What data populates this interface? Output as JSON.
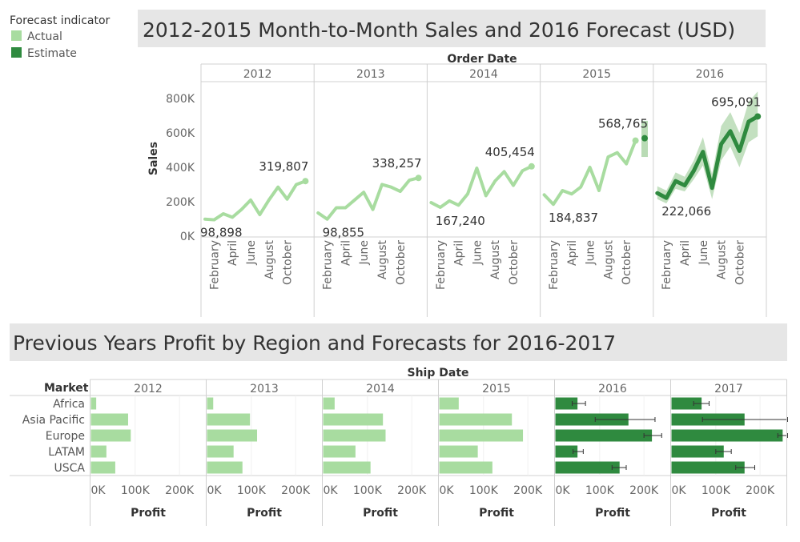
{
  "legend": {
    "title": "Forecast indicator",
    "items": [
      {
        "label": "Actual",
        "color": "#a8dca0"
      },
      {
        "label": "Estimate",
        "color": "#2f8a3f"
      }
    ]
  },
  "chart_data": [
    {
      "type": "line",
      "title": "2012-2015 Month-to-Month Sales and 2016 Forecast (USD)",
      "column_header": "Order Date",
      "ylabel": "Sales",
      "ylim": [
        0,
        860000
      ],
      "yticks": [
        0,
        200000,
        400000,
        600000,
        800000
      ],
      "ytick_labels": [
        "0K",
        "200K",
        "400K",
        "600K",
        "800K"
      ],
      "month_tick_labels": [
        "February",
        "April",
        "June",
        "August",
        "October"
      ],
      "colors": {
        "actual": "#a8dca0",
        "estimate": "#2f8a3f",
        "band": "#b9dbb5"
      },
      "years": [
        {
          "year": "2012",
          "indicator": "Actual",
          "values": [
            98898,
            95000,
            130000,
            110000,
            155000,
            210000,
            125000,
            210000,
            285000,
            215000,
            300000,
            319807
          ],
          "labels": [
            {
              "text": "98,898",
              "index": 0
            },
            {
              "text": "319,807",
              "index": 11
            }
          ]
        },
        {
          "year": "2013",
          "indicator": "Actual",
          "values": [
            135000,
            98855,
            165000,
            165000,
            210000,
            255000,
            155000,
            300000,
            285000,
            260000,
            325000,
            338257
          ],
          "labels": [
            {
              "text": "98,855",
              "index": 1
            },
            {
              "text": "338,257",
              "index": 11
            }
          ]
        },
        {
          "year": "2014",
          "indicator": "Actual",
          "values": [
            195000,
            167240,
            205000,
            180000,
            245000,
            395000,
            235000,
            320000,
            375000,
            295000,
            380000,
            405454
          ],
          "labels": [
            {
              "text": "167,240",
              "index": 1
            },
            {
              "text": "405,454",
              "index": 11
            }
          ]
        },
        {
          "year": "2015",
          "indicator": "Actual",
          "values": [
            240000,
            184837,
            265000,
            245000,
            285000,
            400000,
            265000,
            460000,
            485000,
            420000,
            555000
          ],
          "labels": [
            {
              "text": "184,837",
              "index": 1
            },
            {
              "text": "568,765",
              "index": 11
            }
          ],
          "estimate_point": {
            "index": 11,
            "value": 568765,
            "low": 460000,
            "high": 670000
          }
        },
        {
          "year": "2016",
          "indicator": "Estimate",
          "values": [
            250000,
            222066,
            320000,
            295000,
            380000,
            490000,
            280000,
            535000,
            610000,
            495000,
            665000,
            695091
          ],
          "band_low": [
            215000,
            190000,
            275000,
            260000,
            330000,
            410000,
            215000,
            440000,
            520000,
            400000,
            545000,
            580000
          ],
          "band_high": [
            290000,
            265000,
            370000,
            345000,
            440000,
            575000,
            360000,
            640000,
            720000,
            600000,
            780000,
            840000
          ],
          "labels": [
            {
              "text": "222,066",
              "index": 1
            },
            {
              "text": "695,091",
              "index": 11
            }
          ]
        }
      ]
    },
    {
      "type": "bar",
      "orientation": "horizontal",
      "title": "Previous Years Profit by Region and Forecasts for 2016-2017",
      "column_header": "Ship Date",
      "row_header": "Market",
      "categories": [
        "Africa",
        "Asia Pacific",
        "Europe",
        "LATAM",
        "USCA"
      ],
      "xlabel": "Profit",
      "xlim": [
        0,
        235000
      ],
      "xticks": [
        0,
        100000,
        200000
      ],
      "xtick_labels": [
        "0K",
        "100K",
        "200K"
      ],
      "years": [
        {
          "year": "2012",
          "indicator": "Actual",
          "values": [
            12000,
            84000,
            90000,
            35000,
            55000
          ]
        },
        {
          "year": "2013",
          "indicator": "Actual",
          "values": [
            14000,
            97000,
            113000,
            60000,
            80000
          ]
        },
        {
          "year": "2014",
          "indicator": "Actual",
          "values": [
            26000,
            135000,
            141000,
            73000,
            107000
          ]
        },
        {
          "year": "2015",
          "indicator": "Actual",
          "values": [
            44000,
            164000,
            189000,
            87000,
            120000
          ]
        },
        {
          "year": "2016",
          "indicator": "Estimate",
          "values": [
            50000,
            165000,
            218000,
            50000,
            145000
          ],
          "error_low": [
            38000,
            90000,
            200000,
            40000,
            128000
          ],
          "error_high": [
            68000,
            225000,
            240000,
            63000,
            160000
          ]
        },
        {
          "year": "2017",
          "indicator": "Estimate",
          "values": [
            68000,
            165000,
            251000,
            118000,
            165000
          ],
          "error_low": [
            50000,
            70000,
            240000,
            100000,
            145000
          ],
          "error_high": [
            85000,
            262000,
            262000,
            135000,
            188000
          ]
        }
      ]
    }
  ]
}
